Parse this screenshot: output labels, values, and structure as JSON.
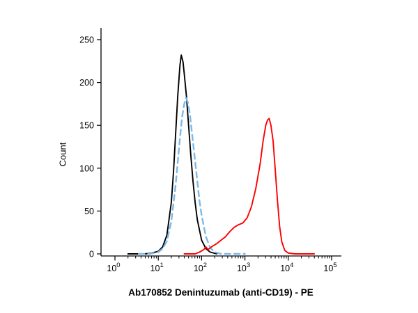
{
  "figure": {
    "background": "#ffffff"
  },
  "chart_data": {
    "type": "line",
    "subtype": "flow-cytometry-histogram",
    "title": "",
    "xlabel": "Ab170852 Denintuzumab (anti-CD19) - PE",
    "ylabel": "Count",
    "x_scale": "log10",
    "x_range_log10": [
      0,
      5
    ],
    "x_ticks_exponents": [
      0,
      1,
      2,
      3,
      4,
      5
    ],
    "x_tick_base": "10",
    "ylim": [
      0,
      250
    ],
    "y_ticks": [
      0,
      50,
      100,
      150,
      200,
      250
    ],
    "grid": false,
    "legend_position": "none",
    "axis_color": "#000000",
    "series": [
      {
        "name": "black-solid-curve",
        "color": "#000000",
        "style": "solid",
        "peak": {
          "x_log10": 1.53,
          "count": 232
        },
        "points": [
          [
            0.3,
            0
          ],
          [
            0.7,
            0
          ],
          [
            0.85,
            1
          ],
          [
            1.0,
            3
          ],
          [
            1.1,
            8
          ],
          [
            1.2,
            22
          ],
          [
            1.3,
            60
          ],
          [
            1.35,
            95
          ],
          [
            1.4,
            140
          ],
          [
            1.45,
            185
          ],
          [
            1.5,
            220
          ],
          [
            1.53,
            232
          ],
          [
            1.57,
            224
          ],
          [
            1.6,
            210
          ],
          [
            1.65,
            184
          ],
          [
            1.7,
            150
          ],
          [
            1.75,
            115
          ],
          [
            1.8,
            85
          ],
          [
            1.85,
            60
          ],
          [
            1.9,
            40
          ],
          [
            2.0,
            16
          ],
          [
            2.1,
            6
          ],
          [
            2.2,
            2
          ],
          [
            2.35,
            0
          ]
        ]
      },
      {
        "name": "blue-dashed-curve",
        "color": "#7cb9e8",
        "style": "dashed",
        "peak": {
          "x_log10": 1.64,
          "count": 182
        },
        "points": [
          [
            0.55,
            0
          ],
          [
            0.8,
            0
          ],
          [
            1.0,
            2
          ],
          [
            1.1,
            6
          ],
          [
            1.2,
            15
          ],
          [
            1.3,
            38
          ],
          [
            1.4,
            80
          ],
          [
            1.5,
            135
          ],
          [
            1.55,
            160
          ],
          [
            1.6,
            175
          ],
          [
            1.64,
            182
          ],
          [
            1.68,
            177
          ],
          [
            1.73,
            163
          ],
          [
            1.78,
            140
          ],
          [
            1.85,
            108
          ],
          [
            1.9,
            85
          ],
          [
            1.95,
            62
          ],
          [
            2.0,
            45
          ],
          [
            2.1,
            20
          ],
          [
            2.2,
            7
          ],
          [
            2.3,
            2
          ],
          [
            2.45,
            0
          ],
          [
            3.0,
            0
          ]
        ]
      },
      {
        "name": "red-solid-curve",
        "color": "#ff0000",
        "style": "solid",
        "peak": {
          "x_log10": 3.56,
          "count": 158
        },
        "points": [
          [
            1.6,
            0
          ],
          [
            1.85,
            0
          ],
          [
            1.95,
            2
          ],
          [
            2.05,
            5
          ],
          [
            2.1,
            8
          ],
          [
            2.15,
            5
          ],
          [
            2.25,
            9
          ],
          [
            2.35,
            12
          ],
          [
            2.45,
            16
          ],
          [
            2.55,
            20
          ],
          [
            2.65,
            26
          ],
          [
            2.75,
            31
          ],
          [
            2.85,
            34
          ],
          [
            2.95,
            36
          ],
          [
            3.05,
            42
          ],
          [
            3.15,
            55
          ],
          [
            3.25,
            76
          ],
          [
            3.35,
            105
          ],
          [
            3.42,
            132
          ],
          [
            3.48,
            150
          ],
          [
            3.52,
            156
          ],
          [
            3.56,
            158
          ],
          [
            3.6,
            150
          ],
          [
            3.65,
            132
          ],
          [
            3.7,
            98
          ],
          [
            3.75,
            62
          ],
          [
            3.8,
            32
          ],
          [
            3.85,
            14
          ],
          [
            3.92,
            4
          ],
          [
            4.0,
            1
          ],
          [
            4.15,
            0
          ],
          [
            4.6,
            0
          ]
        ]
      }
    ]
  }
}
